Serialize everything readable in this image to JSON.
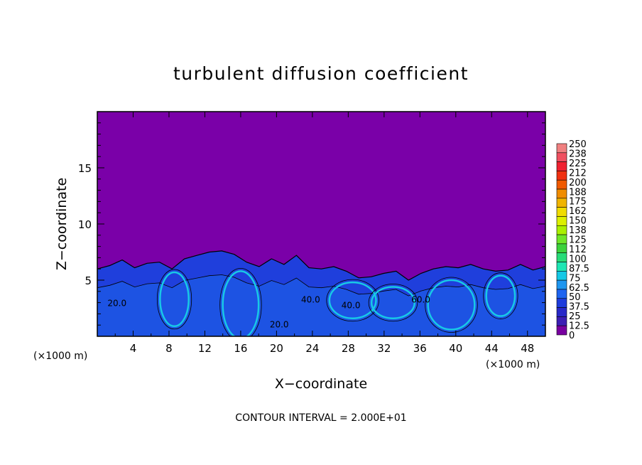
{
  "chart_data": {
    "type": "heatmap",
    "title": "turbulent diffusion coefficient",
    "xlabel": "X−coordinate",
    "ylabel": "Z−coordinate",
    "x_unit_left": "(×1000 m)",
    "x_unit_right": "(×1000 m)",
    "footer": "CONTOUR INTERVAL = 2.000E+01",
    "xlim": [
      0,
      50
    ],
    "ylim": [
      0,
      20
    ],
    "x_ticks": [
      "4",
      "8",
      "12",
      "16",
      "20",
      "24",
      "28",
      "32",
      "36",
      "40",
      "44",
      "48"
    ],
    "x_tick_values": [
      4,
      8,
      12,
      16,
      20,
      24,
      28,
      32,
      36,
      40,
      44,
      48
    ],
    "y_ticks": [
      "5",
      "10",
      "15"
    ],
    "y_tick_values": [
      5,
      10,
      15
    ],
    "contour_labels": [
      {
        "text": "20.0",
        "x": 2.2,
        "z": 2.7
      },
      {
        "text": "40.0",
        "x": 23.8,
        "z": 3.0
      },
      {
        "text": "40.0",
        "x": 28.3,
        "z": 2.5
      },
      {
        "text": "60.0",
        "x": 36.1,
        "z": 3.0
      },
      {
        "text": "20.0",
        "x": 20.3,
        "z": 0.8
      }
    ],
    "boundary_top_z": [
      6.0,
      6.3,
      6.8,
      6.1,
      6.5,
      6.6,
      6.0,
      6.9,
      7.2,
      7.5,
      7.6,
      7.3,
      6.6,
      6.2,
      6.9,
      6.4,
      7.2,
      6.1,
      6.0,
      6.2,
      5.8,
      5.2,
      5.3,
      5.6,
      5.8,
      5.0,
      5.6,
      6.0,
      6.2,
      6.1,
      6.4,
      6.0,
      5.8,
      5.9,
      6.4,
      5.9,
      6.2
    ],
    "colorbar_labels": [
      "250",
      "238",
      "225",
      "212",
      "200",
      "188",
      "175",
      "162",
      "150",
      "138",
      "125",
      "112",
      "100",
      "87.5",
      "75",
      "62.5",
      "50",
      "37.5",
      "25",
      "12.5",
      "0"
    ],
    "colorbar_colors": [
      "#f08080",
      "#f05060",
      "#f02030",
      "#f03010",
      "#f05a00",
      "#f08c00",
      "#f0b400",
      "#f0dc00",
      "#dcf000",
      "#aaf000",
      "#6ee628",
      "#3cd23c",
      "#28dc78",
      "#1ee6b4",
      "#14c8e6",
      "#1e96f0",
      "#1e64f0",
      "#1e3cdc",
      "#2828c8",
      "#3c1eb4",
      "#7800a0"
    ],
    "colors": {
      "background_field": "#7a00a8",
      "turbulent_layer": "#1f3fdc",
      "turbulent_mid": "#1a78f0",
      "turbulent_high": "#18c8e6"
    }
  }
}
